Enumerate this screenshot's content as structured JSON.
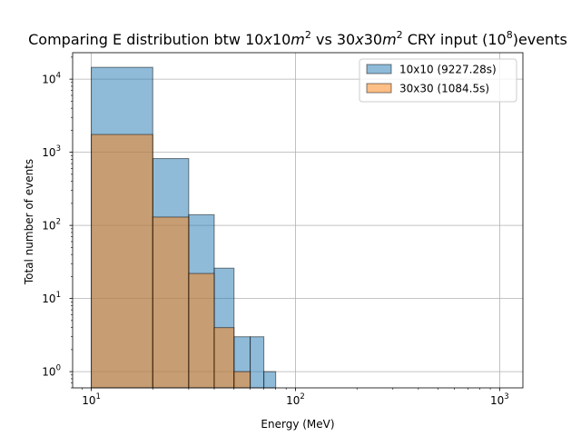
{
  "chart_data": {
    "type": "bar",
    "title": "Comparing E distribution btw 10x10m² vs 30x30m² CRY input (10⁸)events",
    "title_parts": {
      "p1": "Comparing E distribution btw 10",
      "p2": "x",
      "p3": "10",
      "p4": "m",
      "p5": "2",
      "p6": " vs 30",
      "p7": "x",
      "p8": "30",
      "p9": "m",
      "p10": "2",
      "p11": " CRY input (10",
      "p12": "8",
      "p13": ")events"
    },
    "xlabel": "Energy (MeV)",
    "ylabel": "Total number of events",
    "x_scale": "log",
    "y_scale": "log",
    "xlim": [
      8.1,
      1300
    ],
    "ylim": [
      0.6,
      23000
    ],
    "grid": true,
    "legend_position": "top-right",
    "x_ticks": [
      {
        "value": 10,
        "base": "10",
        "exp": "1"
      },
      {
        "value": 100,
        "base": "10",
        "exp": "2"
      },
      {
        "value": 1000,
        "base": "10",
        "exp": "3"
      }
    ],
    "y_ticks": [
      {
        "value": 1,
        "base": "10",
        "exp": "0"
      },
      {
        "value": 10,
        "base": "10",
        "exp": "1"
      },
      {
        "value": 100,
        "base": "10",
        "exp": "2"
      },
      {
        "value": 1000,
        "base": "10",
        "exp": "3"
      },
      {
        "value": 10000,
        "base": "10",
        "exp": "4"
      }
    ],
    "series": [
      {
        "name": "10x10 (9227.28s)",
        "color": "#1f77b4",
        "bins": [
          {
            "x0": 10,
            "x1": 20,
            "count": 14500
          },
          {
            "x0": 20,
            "x1": 30,
            "count": 820
          },
          {
            "x0": 30,
            "x1": 40,
            "count": 140
          },
          {
            "x0": 40,
            "x1": 50,
            "count": 26
          },
          {
            "x0": 50,
            "x1": 60,
            "count": 3
          },
          {
            "x0": 60,
            "x1": 70,
            "count": 3
          },
          {
            "x0": 70,
            "x1": 80,
            "count": 1
          }
        ]
      },
      {
        "name": "30x30 (1084.5s)",
        "color": "#ff7f0e",
        "bins": [
          {
            "x0": 10,
            "x1": 20,
            "count": 1750
          },
          {
            "x0": 20,
            "x1": 30,
            "count": 130
          },
          {
            "x0": 30,
            "x1": 40,
            "count": 22
          },
          {
            "x0": 40,
            "x1": 50,
            "count": 4
          },
          {
            "x0": 50,
            "x1": 60,
            "count": 1
          }
        ]
      }
    ]
  }
}
